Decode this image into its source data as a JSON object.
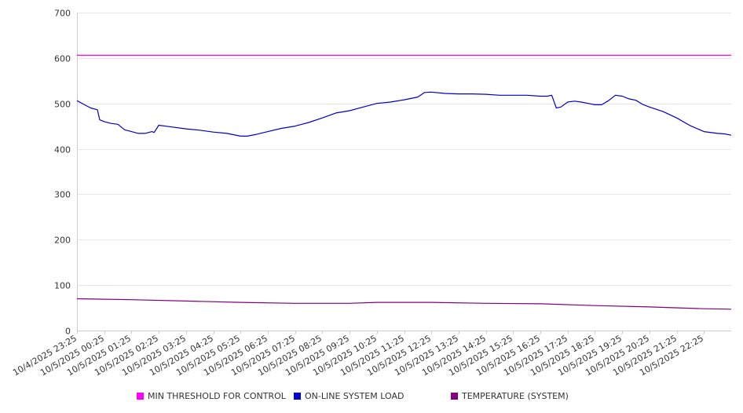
{
  "chart_data": {
    "type": "line",
    "ylim": [
      0,
      700
    ],
    "y_ticks": [
      "0",
      "100",
      "200",
      "300",
      "400",
      "500",
      "600",
      "700"
    ],
    "x_tick_labels": [
      "10/4/2025 23:25",
      "10/5/2025 00:25",
      "10/5/2025 01:25",
      "10/5/2025 02:25",
      "10/5/2025 03:25",
      "10/5/2025 04:25",
      "10/5/2025 05:25",
      "10/5/2025 06:25",
      "10/5/2025 07:25",
      "10/5/2025 08:25",
      "10/5/2025 09:25",
      "10/5/2025 10:25",
      "10/5/2025 11:25",
      "10/5/2025 12:25",
      "10/5/2025 13:25",
      "10/5/2025 14:25",
      "10/5/2025 15:25",
      "10/5/2025 16:25",
      "10/5/2025 17:25",
      "10/5/2025 18:25",
      "10/5/2025 19:25",
      "10/5/2025 20:25",
      "10/5/2025 21:25",
      "10/5/2025 22:25"
    ],
    "x_range": [
      "10/4/2025 23:25",
      "10/5/2025 23:25"
    ],
    "grid": true,
    "legend_position": "bottom",
    "series": [
      {
        "name": "MIN THRESHOLD FOR CONTROL",
        "color": "#ff00ff",
        "x": [
          "10/4/2025 23:25",
          "10/5/2025 23:25"
        ],
        "values": [
          606,
          606
        ]
      },
      {
        "name": "ON-LINE SYSTEM LOAD",
        "color": "#0000cc",
        "x": [
          "10/4/2025 23:25",
          "10/4/2025 23:40",
          "10/4/2025 23:55",
          "10/5/2025 00:10",
          "10/5/2025 00:15",
          "10/5/2025 00:25",
          "10/5/2025 00:40",
          "10/5/2025 00:55",
          "10/5/2025 01:10",
          "10/5/2025 01:25",
          "10/5/2025 01:40",
          "10/5/2025 01:55",
          "10/5/2025 02:10",
          "10/5/2025 02:15",
          "10/5/2025 02:25",
          "10/5/2025 02:55",
          "10/5/2025 03:25",
          "10/5/2025 03:55",
          "10/5/2025 04:25",
          "10/5/2025 04:55",
          "10/5/2025 05:10",
          "10/5/2025 05:25",
          "10/5/2025 05:40",
          "10/5/2025 06:00",
          "10/5/2025 06:25",
          "10/5/2025 06:55",
          "10/5/2025 07:25",
          "10/5/2025 07:55",
          "10/5/2025 08:25",
          "10/5/2025 08:55",
          "10/5/2025 09:25",
          "10/5/2025 09:55",
          "10/5/2025 10:25",
          "10/5/2025 10:55",
          "10/5/2025 11:25",
          "10/5/2025 11:55",
          "10/5/2025 12:10",
          "10/5/2025 12:25",
          "10/5/2025 12:55",
          "10/5/2025 13:25",
          "10/5/2025 13:55",
          "10/5/2025 14:25",
          "10/5/2025 14:55",
          "10/5/2025 15:25",
          "10/5/2025 15:55",
          "10/5/2025 16:25",
          "10/5/2025 16:40",
          "10/5/2025 16:50",
          "10/5/2025 17:00",
          "10/5/2025 17:10",
          "10/5/2025 17:25",
          "10/5/2025 17:40",
          "10/5/2025 17:55",
          "10/5/2025 18:10",
          "10/5/2025 18:25",
          "10/5/2025 18:40",
          "10/5/2025 18:55",
          "10/5/2025 19:10",
          "10/5/2025 19:25",
          "10/5/2025 19:40",
          "10/5/2025 19:55",
          "10/5/2025 20:10",
          "10/5/2025 20:25",
          "10/5/2025 20:55",
          "10/5/2025 21:25",
          "10/5/2025 21:55",
          "10/5/2025 22:25",
          "10/5/2025 22:55",
          "10/5/2025 23:10",
          "10/5/2025 23:25"
        ],
        "values": [
          506,
          498,
          490,
          486,
          464,
          460,
          456,
          454,
          442,
          438,
          434,
          434,
          438,
          436,
          452,
          448,
          444,
          441,
          437,
          434,
          431,
          428,
          428,
          432,
          438,
          445,
          450,
          458,
          468,
          479,
          484,
          492,
          500,
          503,
          508,
          514,
          524,
          525,
          522,
          521,
          521,
          520,
          518,
          518,
          518,
          516,
          516,
          518,
          490,
          492,
          503,
          505,
          503,
          500,
          497,
          497,
          506,
          518,
          516,
          510,
          507,
          498,
          492,
          482,
          468,
          451,
          438,
          434,
          433,
          430
        ]
      },
      {
        "name": "TEMPERATURE (SYSTEM)",
        "color": "#800080",
        "x": [
          "10/4/2025 23:25",
          "10/5/2025 01:25",
          "10/5/2025 03:25",
          "10/5/2025 05:25",
          "10/5/2025 07:25",
          "10/5/2025 09:25",
          "10/5/2025 10:25",
          "10/5/2025 12:25",
          "10/5/2025 14:25",
          "10/5/2025 16:25",
          "10/5/2025 18:25",
          "10/5/2025 20:25",
          "10/5/2025 22:25",
          "10/5/2025 23:25"
        ],
        "values": [
          70,
          68,
          65,
          62,
          60,
          60,
          62,
          62,
          60,
          59,
          55,
          52,
          48,
          47
        ]
      }
    ]
  }
}
